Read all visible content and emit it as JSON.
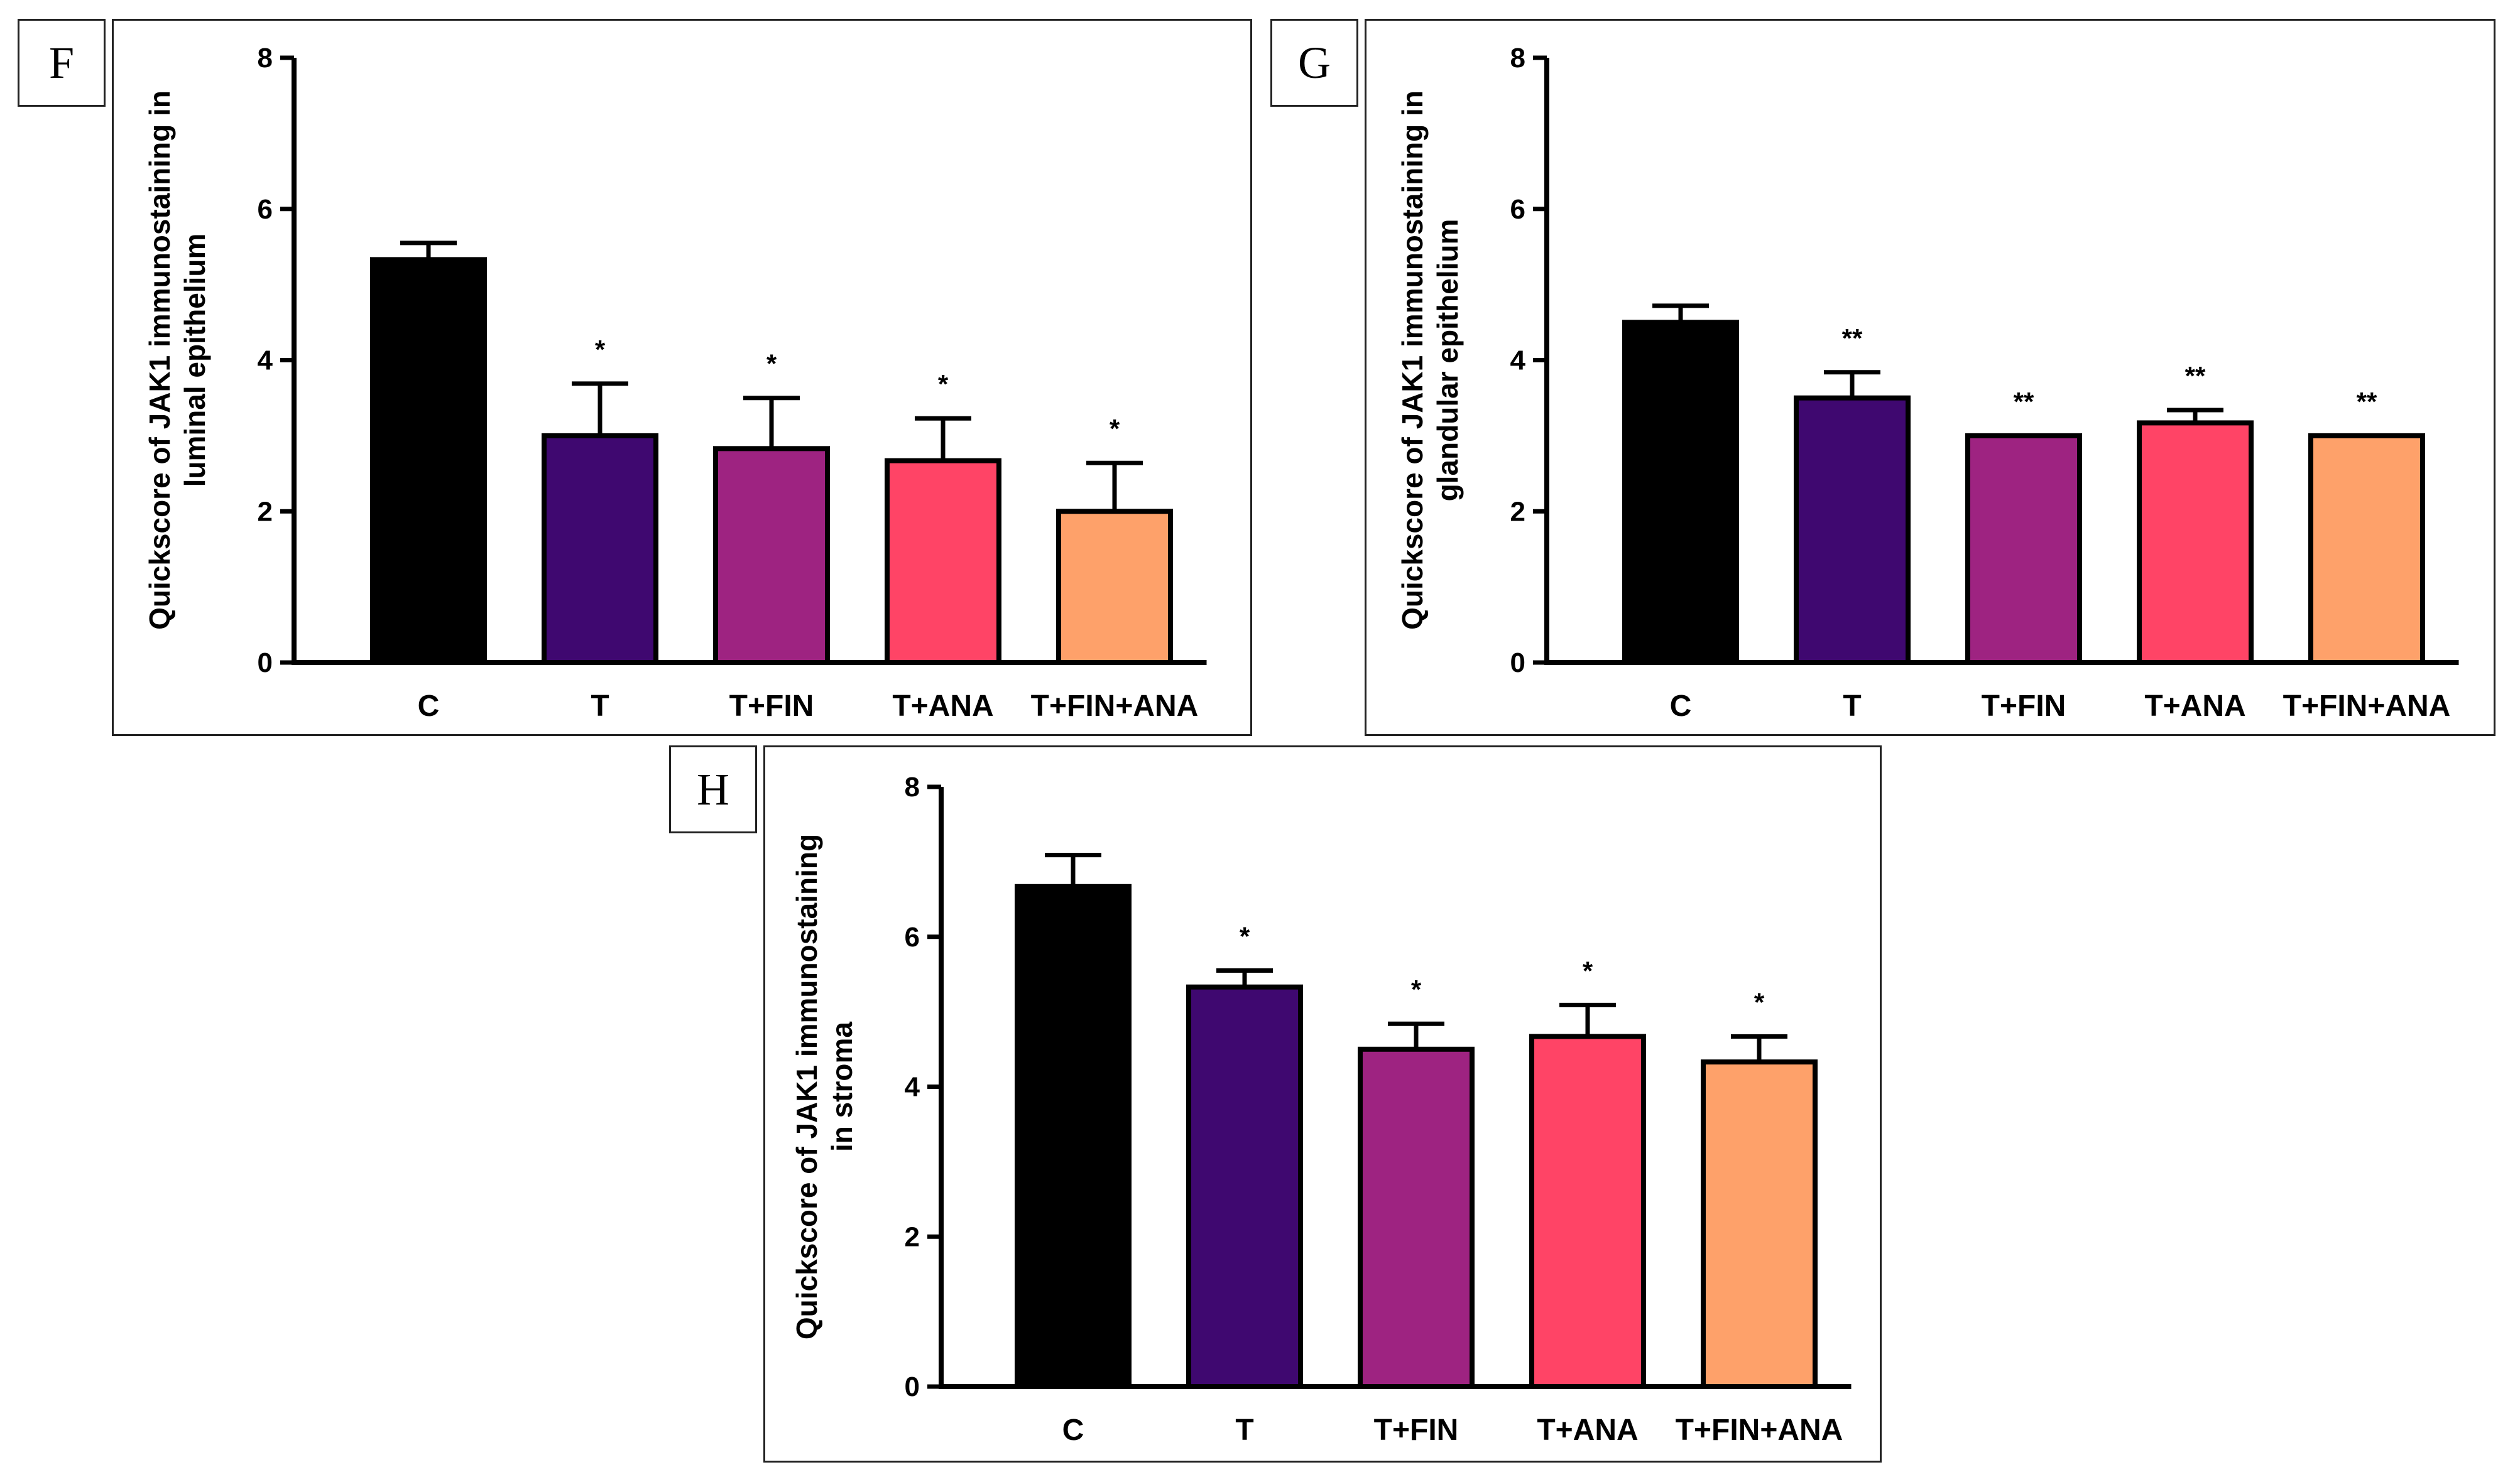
{
  "figure": {
    "panels": [
      "F",
      "G",
      "H"
    ]
  },
  "colors": [
    "#000000",
    "#3f0870",
    "#9e2381",
    "#ff4466",
    "#fea16a"
  ],
  "chart_data": [
    {
      "id": "F",
      "type": "bar",
      "panel_label": "F",
      "categories": [
        "C",
        "T",
        "T+FIN",
        "T+ANA",
        "T+FIN+ANA"
      ],
      "values": [
        5.33,
        3.0,
        2.83,
        2.67,
        2.0
      ],
      "errors": [
        0.22,
        0.69,
        0.67,
        0.56,
        0.64
      ],
      "significance": [
        "",
        "*",
        "*",
        "*",
        "*"
      ],
      "ylabel_lines": [
        "Quickscore of JAK1 immunostaining in",
        "luminal epithelium"
      ],
      "ylim": [
        0,
        8
      ],
      "yticks": [
        "0",
        "2",
        "4",
        "6",
        "8"
      ],
      "grid": false
    },
    {
      "id": "G",
      "type": "bar",
      "panel_label": "G",
      "categories": [
        "C",
        "T",
        "T+FIN",
        "T+ANA",
        "T+FIN+ANA"
      ],
      "values": [
        4.5,
        3.5,
        3.0,
        3.17,
        3.0
      ],
      "errors": [
        0.22,
        0.34,
        0.0,
        0.17,
        0.0
      ],
      "significance": [
        "",
        "**",
        "**",
        "**",
        "**"
      ],
      "ylabel_lines": [
        "Quickscore of JAK1 immunostaining in",
        "glandular epithelium"
      ],
      "ylim": [
        0,
        8
      ],
      "yticks": [
        "0",
        "2",
        "4",
        "6",
        "8"
      ],
      "grid": false
    },
    {
      "id": "H",
      "type": "bar",
      "panel_label": "H",
      "categories": [
        "C",
        "T",
        "T+FIN",
        "T+ANA",
        "T+FIN+ANA"
      ],
      "values": [
        6.67,
        5.33,
        4.5,
        4.67,
        4.33
      ],
      "errors": [
        0.42,
        0.22,
        0.34,
        0.42,
        0.34
      ],
      "significance": [
        "",
        "*",
        "*",
        "*",
        "*"
      ],
      "ylabel_lines": [
        "Quickscore of JAK1 immunostaining",
        "in stroma"
      ],
      "ylim": [
        0,
        8
      ],
      "yticks": [
        "0",
        "2",
        "4",
        "6",
        "8"
      ],
      "grid": false
    }
  ]
}
